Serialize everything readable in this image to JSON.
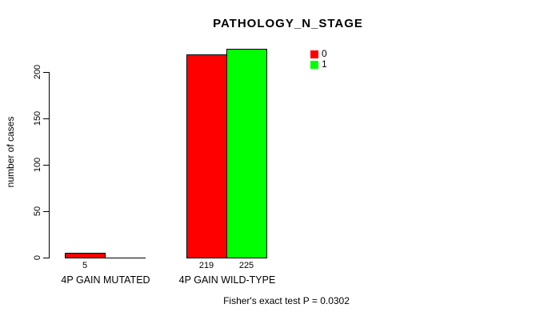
{
  "title": "PATHOLOGY_N_STAGE",
  "y_axis": {
    "label": "number of cases",
    "ticks": [
      0,
      50,
      100,
      150,
      200
    ]
  },
  "legend": {
    "items": [
      {
        "label": "0",
        "color": "#ff0000"
      },
      {
        "label": "1",
        "color": "#00ff00"
      }
    ]
  },
  "footer": "Fisher's exact test P = 0.0302",
  "chart_data": {
    "type": "bar",
    "title": "PATHOLOGY_N_STAGE",
    "xlabel": "",
    "ylabel": "number of cases",
    "categories": [
      "4P GAIN MUTATED",
      "4P GAIN WILD-TYPE"
    ],
    "series": [
      {
        "name": "0",
        "color": "#ff0000",
        "values": [
          5,
          219
        ]
      },
      {
        "name": "1",
        "color": "#00ff00",
        "values": [
          0,
          225
        ]
      }
    ],
    "yticks": [
      0,
      50,
      100,
      150,
      200
    ],
    "ylim": [
      0,
      230
    ],
    "grid": false,
    "legend_position": "top-right",
    "value_labels_shown": [
      "5",
      "219",
      "225"
    ],
    "annotation": "Fisher's exact test P = 0.0302"
  }
}
